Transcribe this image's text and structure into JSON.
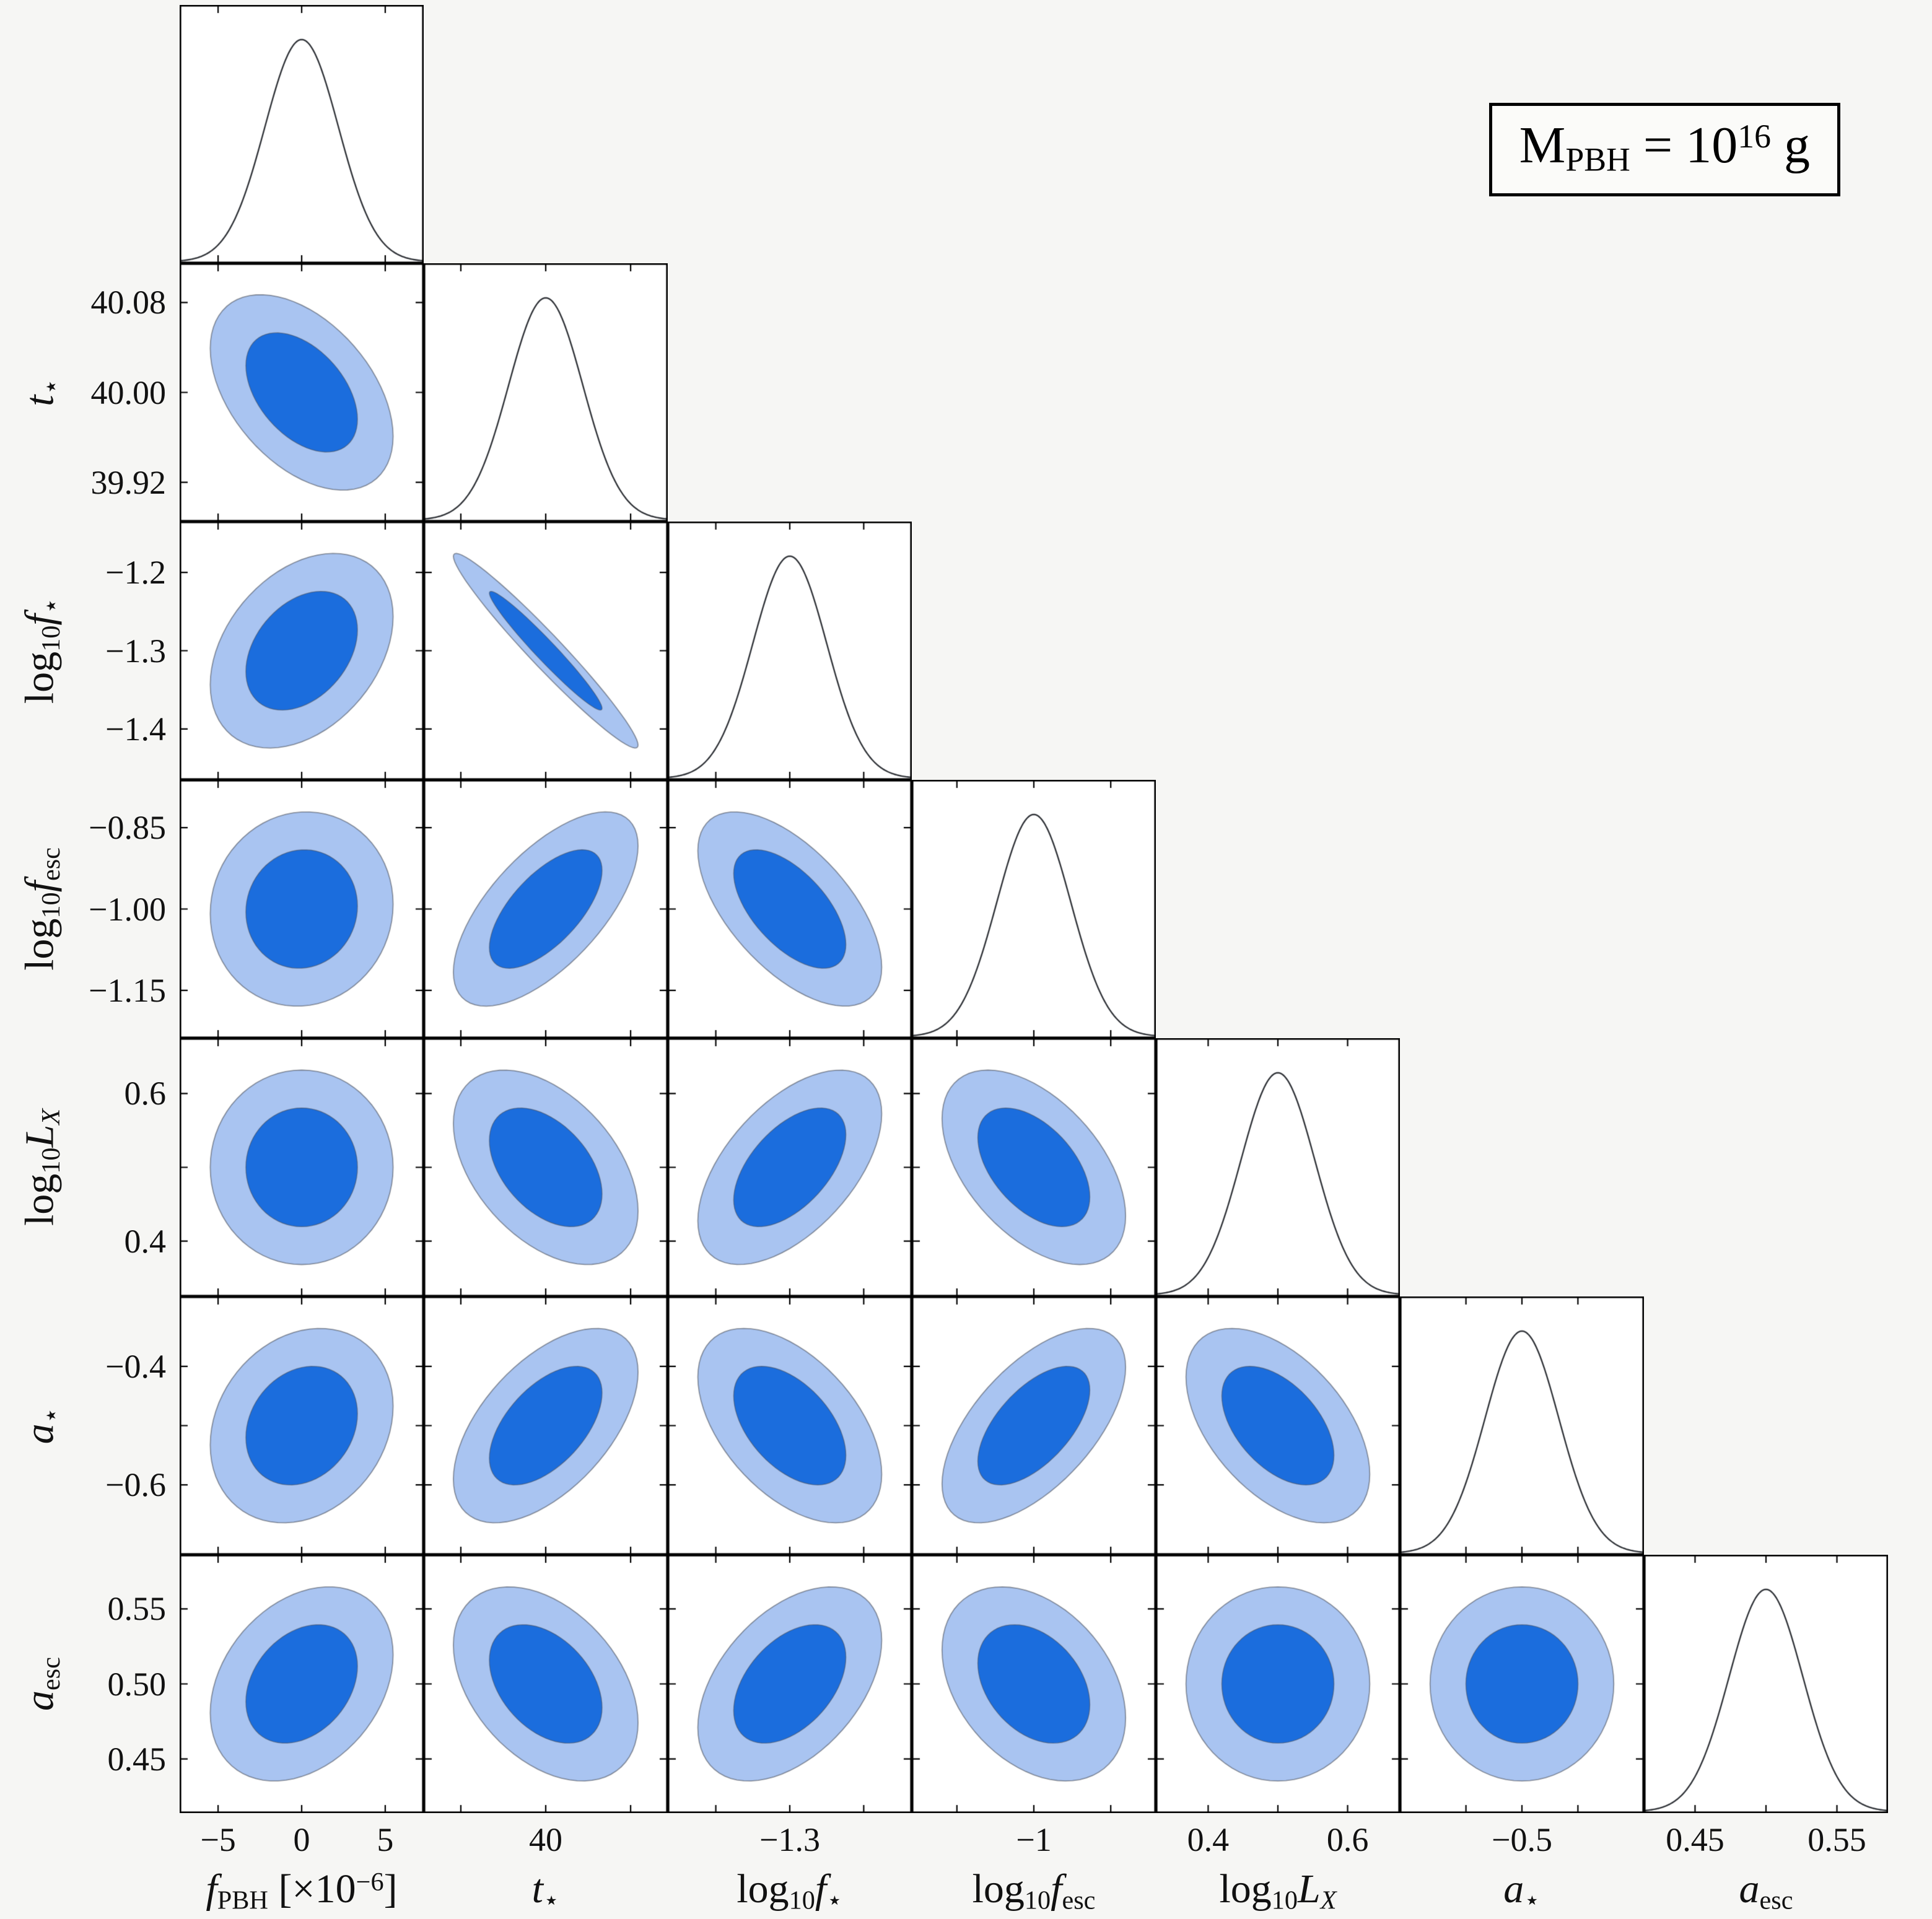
{
  "chart_data": {
    "type": "corner",
    "description": "Triangle (corner) plot of posterior constraints: 1D Gaussian marginals on the diagonal, 68% and 95% confidence ellipses below the diagonal",
    "annotation_segments": [
      {
        "t": "M",
        "s": ""
      },
      {
        "t": "PBH",
        "s": "sub"
      },
      {
        "t": " = 10",
        "s": ""
      },
      {
        "t": "16",
        "s": "sup"
      },
      {
        "t": " g",
        "s": ""
      }
    ],
    "colors": {
      "inner_contour": "#1b6ddd",
      "outer_contour": "#a9c4f1",
      "contour_edge": "rgba(70,75,85,0.55)",
      "curve": "#33363b",
      "frame": "#000000",
      "panel": "#ffffff",
      "background": "#f6f6f4"
    },
    "sigma_levels": {
      "inner_k": 1.517,
      "outer_k": 2.486
    },
    "params": [
      {
        "id": "f_PBH",
        "label_segments": [
          {
            "t": "f",
            "s": "i"
          },
          {
            "t": "PBH",
            "s": "sub"
          },
          {
            "t": " [×10",
            "s": ""
          },
          {
            "t": "−6",
            "s": "sup"
          },
          {
            "t": "]",
            "s": ""
          }
        ],
        "mean": 0,
        "sigma": 2.2,
        "range": [
          -7.3,
          7.3
        ],
        "ticks": [
          {
            "v": -5,
            "xl": "−5",
            "yl": ""
          },
          {
            "v": 0,
            "xl": "0",
            "yl": ""
          },
          {
            "v": 5,
            "xl": "5",
            "yl": ""
          }
        ]
      },
      {
        "id": "t_star",
        "label_segments": [
          {
            "t": "t",
            "s": "i"
          },
          {
            "t": "⋆",
            "s": "sub"
          }
        ],
        "mean": 40.0,
        "sigma": 0.035,
        "range": [
          39.885,
          40.115
        ],
        "ticks": [
          {
            "v": 39.92,
            "xl": "",
            "yl": "39.92"
          },
          {
            "v": 40.0,
            "xl": "40",
            "yl": "40.00"
          },
          {
            "v": 40.08,
            "xl": "",
            "yl": "40.08"
          }
        ]
      },
      {
        "id": "log10_f_star",
        "label_segments": [
          {
            "t": "log",
            "s": ""
          },
          {
            "t": "10",
            "s": "sub"
          },
          {
            "t": "f",
            "s": "i"
          },
          {
            "t": "⋆",
            "s": "sub"
          }
        ],
        "mean": -1.3,
        "sigma": 0.05,
        "range": [
          -1.465,
          -1.135
        ],
        "ticks": [
          {
            "v": -1.4,
            "xl": "",
            "yl": "−1.4"
          },
          {
            "v": -1.3,
            "xl": "−1.3",
            "yl": "−1.3"
          },
          {
            "v": -1.2,
            "xl": "",
            "yl": "−1.2"
          }
        ]
      },
      {
        "id": "log10_f_esc",
        "label_segments": [
          {
            "t": "log",
            "s": ""
          },
          {
            "t": "10",
            "s": "sub"
          },
          {
            "t": "f",
            "s": "i"
          },
          {
            "t": "esc",
            "s": "sub"
          }
        ],
        "mean": -1.0,
        "sigma": 0.072,
        "range": [
          -1.238,
          -0.762
        ],
        "ticks": [
          {
            "v": -1.15,
            "xl": "",
            "yl": "−1.15"
          },
          {
            "v": -1.0,
            "xl": "−1",
            "yl": "−1.00"
          },
          {
            "v": -0.85,
            "xl": "",
            "yl": "−0.85"
          }
        ]
      },
      {
        "id": "log10_LX",
        "label_segments": [
          {
            "t": "log",
            "s": ""
          },
          {
            "t": "10",
            "s": "sub"
          },
          {
            "t": "L",
            "s": "i"
          },
          {
            "t": "X",
            "s": "subi"
          }
        ],
        "mean": 0.5,
        "sigma": 0.053,
        "range": [
          0.325,
          0.675
        ],
        "ticks": [
          {
            "v": 0.4,
            "xl": "0.4",
            "yl": "0.4"
          },
          {
            "v": 0.5,
            "xl": "",
            "yl": ""
          },
          {
            "v": 0.6,
            "xl": "0.6",
            "yl": "0.6"
          }
        ]
      },
      {
        "id": "a_star",
        "label_segments": [
          {
            "t": "a",
            "s": "i"
          },
          {
            "t": "⋆",
            "s": "sub"
          }
        ],
        "mean": -0.5,
        "sigma": 0.066,
        "range": [
          -0.718,
          -0.282
        ],
        "ticks": [
          {
            "v": -0.6,
            "xl": "",
            "yl": "−0.6"
          },
          {
            "v": -0.5,
            "xl": "−0.5",
            "yl": ""
          },
          {
            "v": -0.4,
            "xl": "",
            "yl": "−0.4"
          }
        ]
      },
      {
        "id": "a_esc",
        "label_segments": [
          {
            "t": "a",
            "s": "i"
          },
          {
            "t": "esc",
            "s": "sub"
          }
        ],
        "mean": 0.5,
        "sigma": 0.026,
        "range": [
          0.414,
          0.586
        ],
        "ticks": [
          {
            "v": 0.45,
            "xl": "0.45",
            "yl": "0.45"
          },
          {
            "v": 0.5,
            "xl": "",
            "yl": "0.50"
          },
          {
            "v": 0.55,
            "xl": "0.55",
            "yl": "0.55"
          }
        ]
      }
    ],
    "rho_lower": [
      [
        -0.45
      ],
      [
        0.35,
        -0.97
      ],
      [
        0.05,
        0.65,
        -0.6
      ],
      [
        0.0,
        -0.45,
        0.55,
        -0.5
      ],
      [
        0.2,
        0.55,
        -0.5,
        0.6,
        -0.5
      ],
      [
        0.3,
        -0.4,
        0.45,
        -0.35,
        0.0,
        0.0
      ]
    ]
  }
}
